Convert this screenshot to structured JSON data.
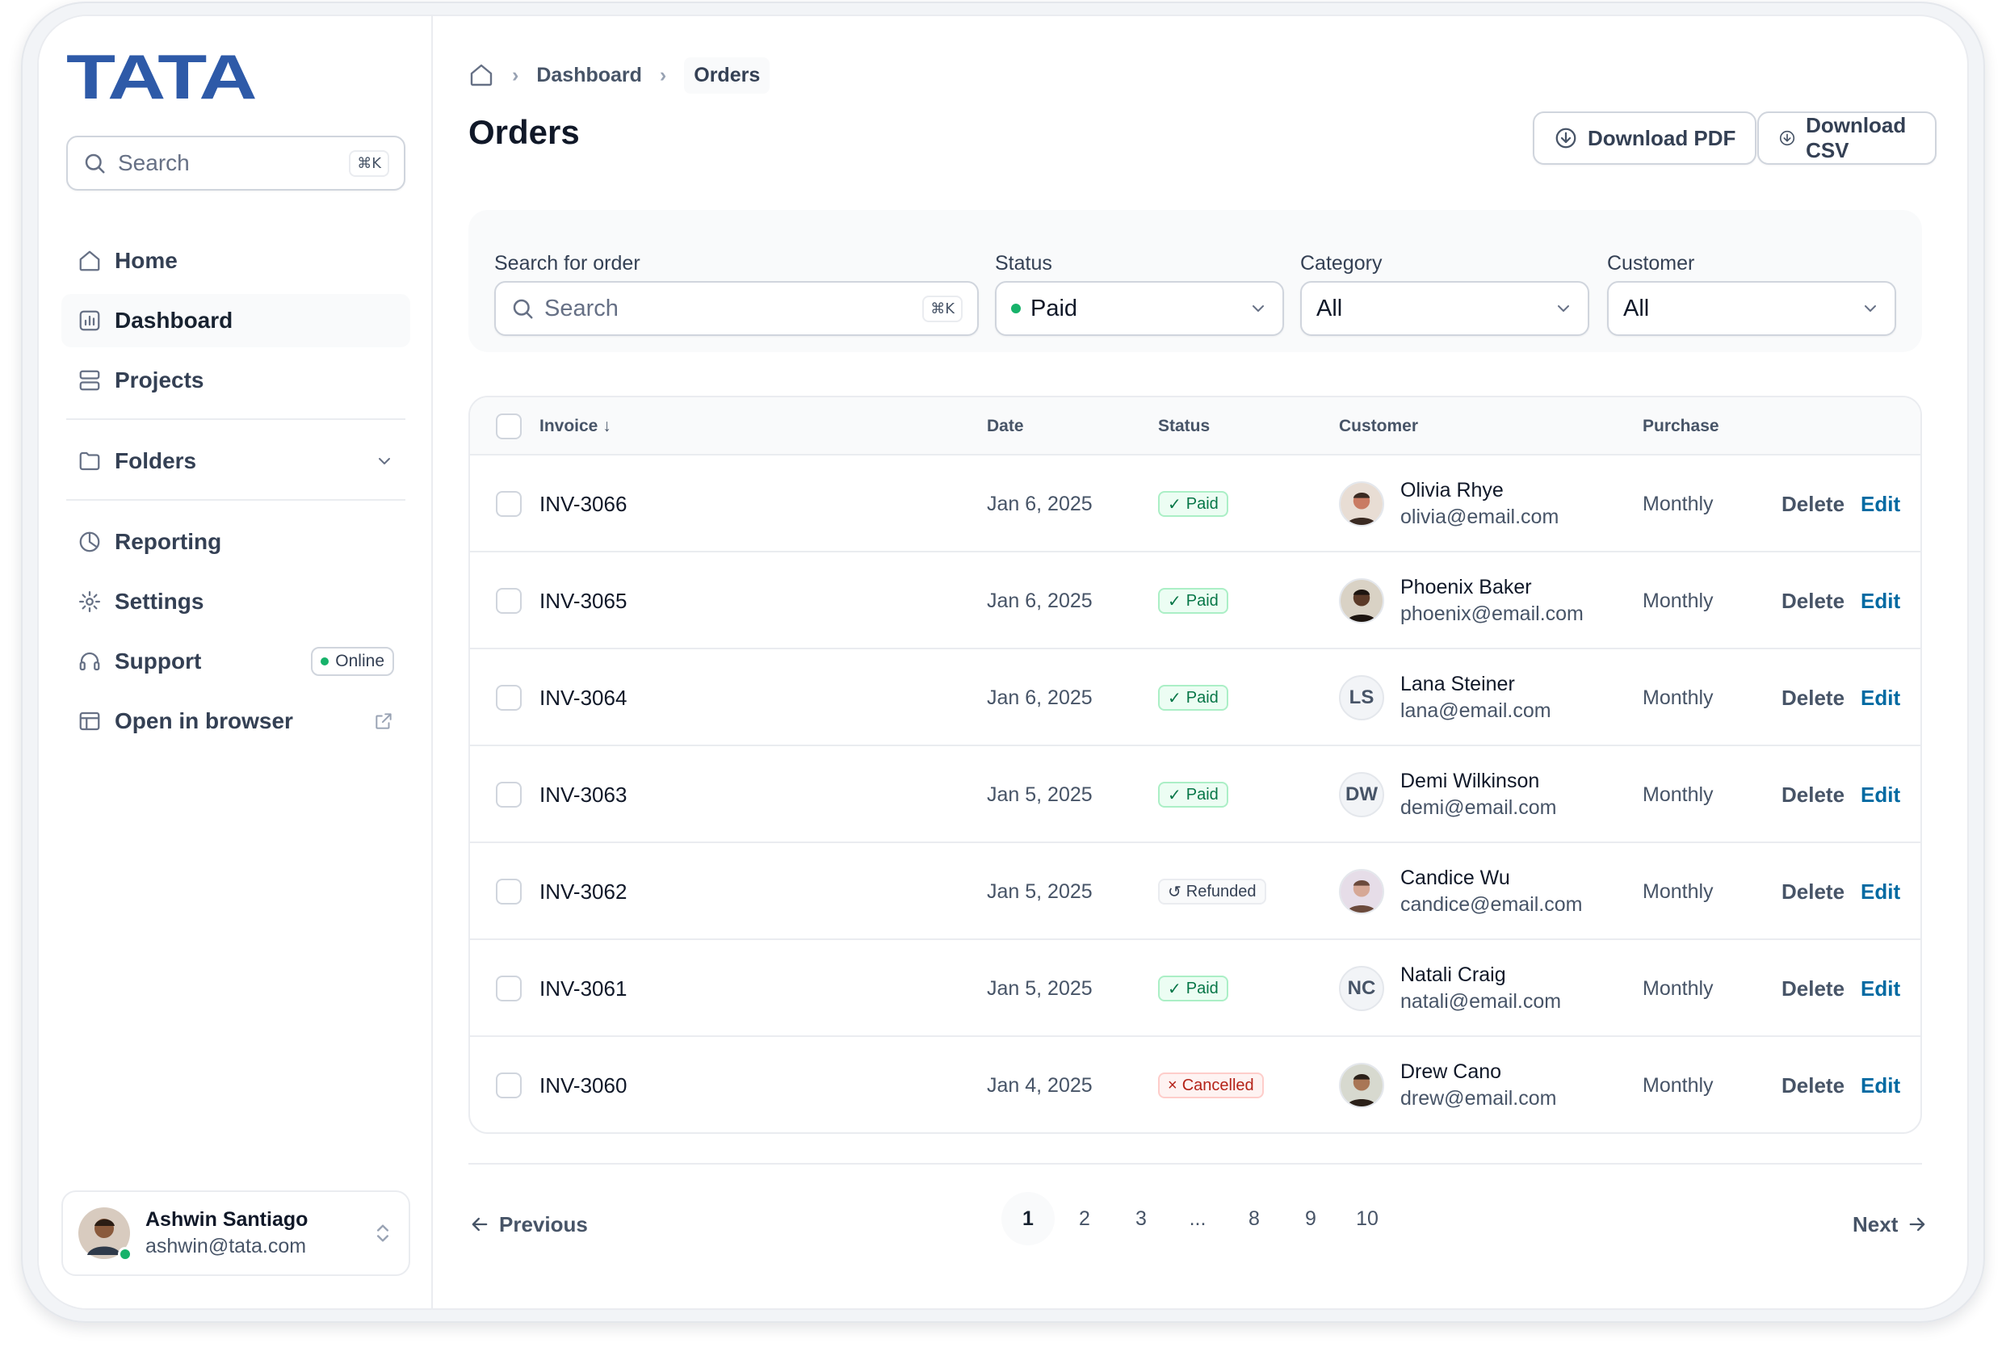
{
  "sidebar": {
    "logo": "TATA",
    "search": {
      "placeholder": "Search",
      "shortcut": "⌘K"
    },
    "nav": [
      {
        "label": "Home",
        "icon": "home-icon"
      },
      {
        "label": "Dashboard",
        "icon": "bar-chart-icon",
        "active": true
      },
      {
        "label": "Projects",
        "icon": "layers-icon"
      }
    ],
    "folders": {
      "label": "Folders",
      "icon": "folder-icon"
    },
    "nav2": [
      {
        "label": "Reporting",
        "icon": "pie-chart-icon"
      },
      {
        "label": "Settings",
        "icon": "gear-icon"
      },
      {
        "label": "Support",
        "icon": "support-icon",
        "badge": "Online"
      },
      {
        "label": "Open in browser",
        "icon": "browser-icon"
      }
    ],
    "user": {
      "name": "Ashwin Santiago",
      "email": "ashwin@tata.com"
    }
  },
  "breadcrumb": {
    "items": [
      "Dashboard",
      "Orders"
    ]
  },
  "page": {
    "title": "Orders"
  },
  "actions": {
    "download_pdf": "Download PDF",
    "download_csv": "Download CSV"
  },
  "filters": {
    "search": {
      "label": "Search for order",
      "placeholder": "Search",
      "shortcut": "⌘K"
    },
    "status": {
      "label": "Status",
      "value": "Paid"
    },
    "category": {
      "label": "Category",
      "value": "All"
    },
    "customer": {
      "label": "Customer",
      "value": "All"
    }
  },
  "table": {
    "columns": {
      "invoice": "Invoice",
      "date": "Date",
      "status": "Status",
      "customer": "Customer",
      "purchase": "Purchase"
    },
    "delete_label": "Delete",
    "edit_label": "Edit",
    "rows": [
      {
        "invoice": "INV-3066",
        "date": "Jan 6, 2025",
        "status": "Paid",
        "name": "Olivia Rhye",
        "email": "olivia@email.com",
        "avatar": "photo",
        "initials": "",
        "purchase": "Monthly"
      },
      {
        "invoice": "INV-3065",
        "date": "Jan 6, 2025",
        "status": "Paid",
        "name": "Phoenix Baker",
        "email": "phoenix@email.com",
        "avatar": "photo",
        "initials": "",
        "purchase": "Monthly"
      },
      {
        "invoice": "INV-3064",
        "date": "Jan 6, 2025",
        "status": "Paid",
        "name": "Lana Steiner",
        "email": "lana@email.com",
        "avatar": "initials",
        "initials": "LS",
        "purchase": "Monthly"
      },
      {
        "invoice": "INV-3063",
        "date": "Jan 5, 2025",
        "status": "Paid",
        "name": "Demi Wilkinson",
        "email": "demi@email.com",
        "avatar": "initials",
        "initials": "DW",
        "purchase": "Monthly"
      },
      {
        "invoice": "INV-3062",
        "date": "Jan 5, 2025",
        "status": "Refunded",
        "name": "Candice Wu",
        "email": "candice@email.com",
        "avatar": "photo",
        "initials": "",
        "purchase": "Monthly"
      },
      {
        "invoice": "INV-3061",
        "date": "Jan 5, 2025",
        "status": "Paid",
        "name": "Natali Craig",
        "email": "natali@email.com",
        "avatar": "initials",
        "initials": "NC",
        "purchase": "Monthly"
      },
      {
        "invoice": "INV-3060",
        "date": "Jan 4, 2025",
        "status": "Cancelled",
        "name": "Drew Cano",
        "email": "drew@email.com",
        "avatar": "photo",
        "initials": "",
        "purchase": "Monthly"
      }
    ]
  },
  "pagination": {
    "previous": "Previous",
    "next": "Next",
    "pages": [
      "1",
      "2",
      "3",
      "...",
      "8",
      "9",
      "10"
    ],
    "current": "1"
  },
  "colors": {
    "brand": "#2e5aa8",
    "success": "#17b26a",
    "link": "#026aa2",
    "danger": "#b42318"
  }
}
